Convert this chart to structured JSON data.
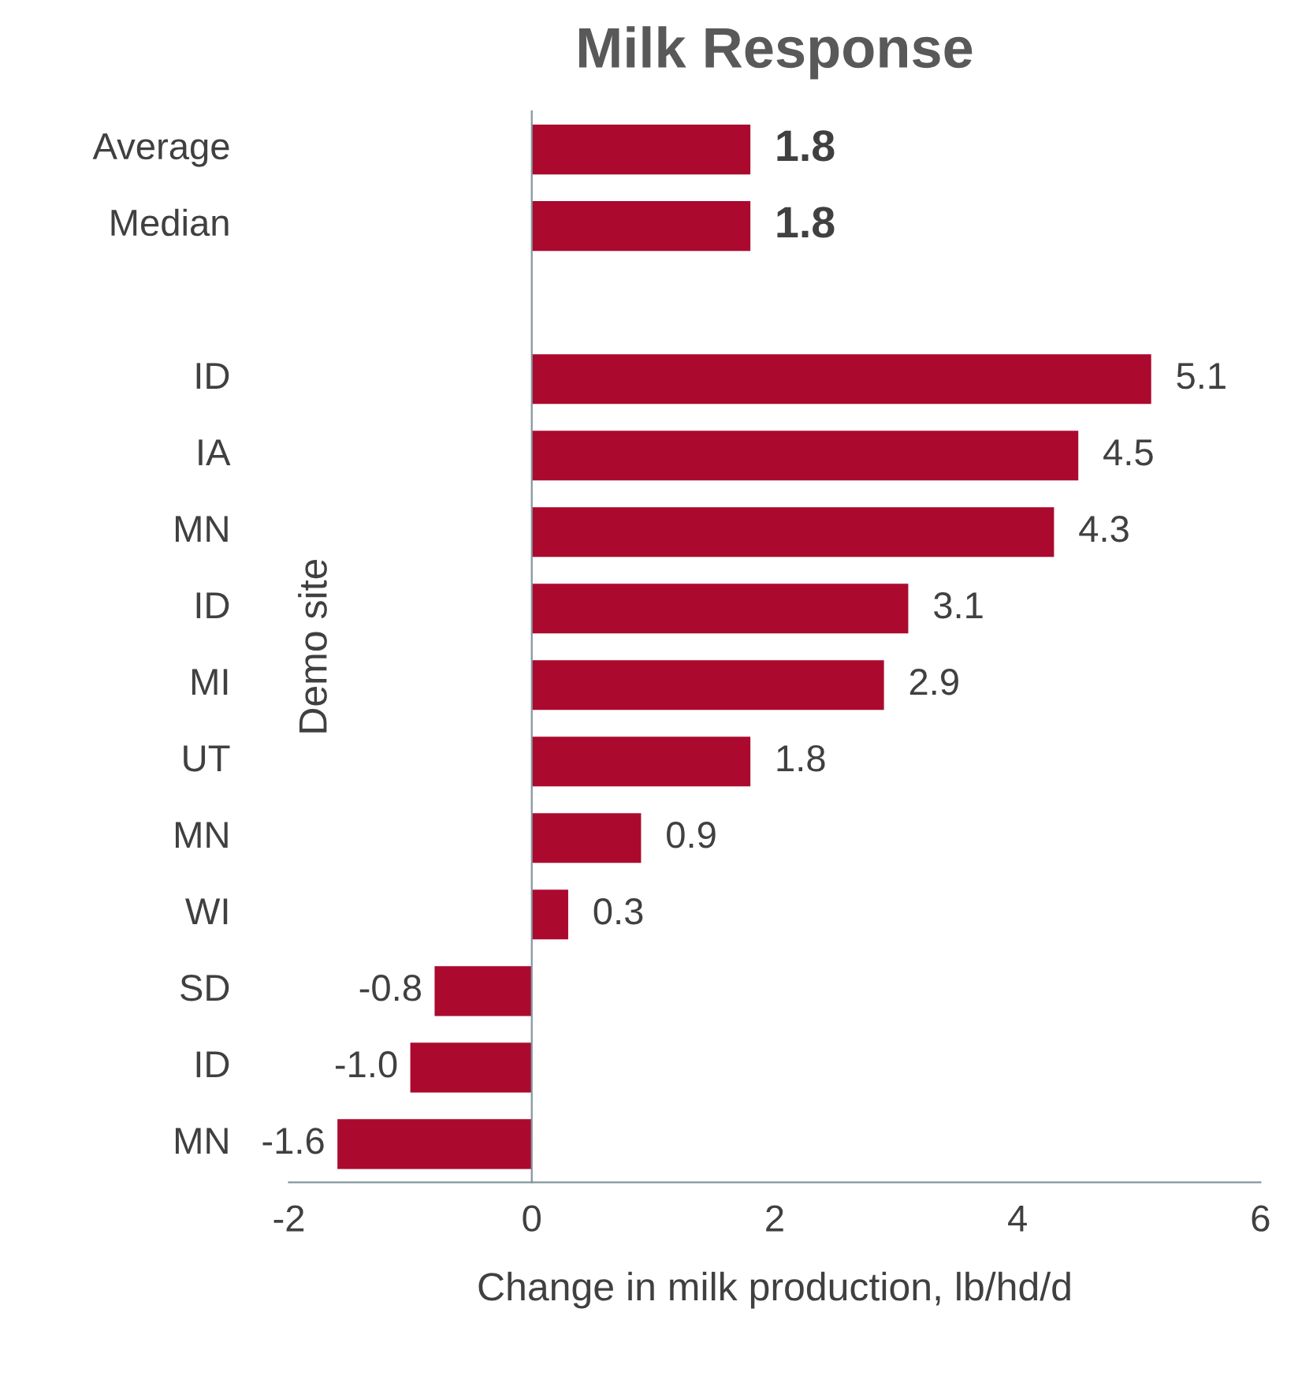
{
  "chart_data": {
    "type": "bar",
    "orientation": "horizontal",
    "title": "Milk Response",
    "xlabel": "Change in milk production, lb/hd/d",
    "ylabel": "Demo site",
    "categories": [
      "Average",
      "Median",
      null,
      "ID",
      "IA",
      "MN",
      "ID",
      "MI",
      "UT",
      "MN",
      "WI",
      "SD",
      "ID",
      "MN"
    ],
    "values": [
      1.8,
      1.8,
      null,
      5.1,
      4.5,
      4.3,
      3.1,
      2.9,
      1.8,
      0.9,
      0.3,
      -0.8,
      -1.0,
      -1.6
    ],
    "value_labels": [
      "1.8",
      "1.8",
      null,
      "5.1",
      "4.5",
      "4.3",
      "3.1",
      "2.9",
      "1.8",
      "0.9",
      "0.3",
      "-0.8",
      "-1.0",
      "-1.6"
    ],
    "color": "#ab0a2e",
    "xlim": [
      -2,
      6
    ],
    "xticks": [
      -2,
      0,
      2,
      4,
      6
    ],
    "legend": false
  }
}
